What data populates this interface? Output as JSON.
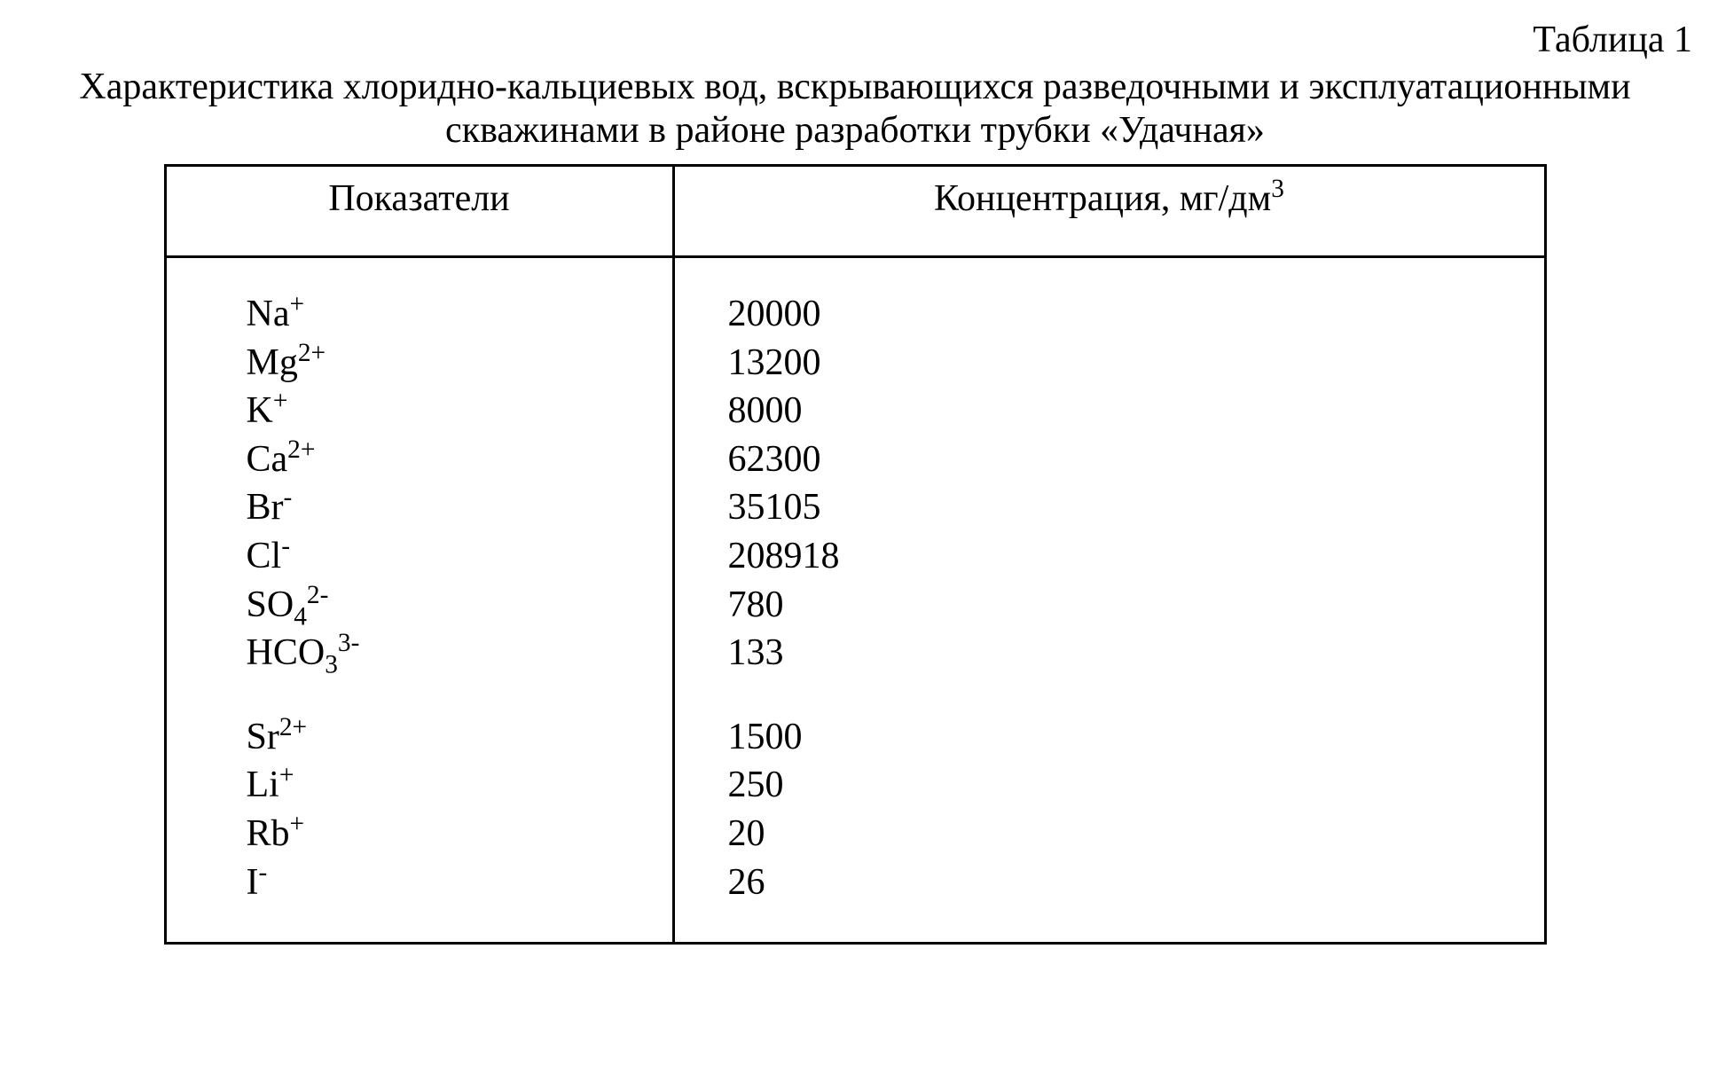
{
  "tableNumber": "Таблица 1",
  "caption": "Характеристика хлоридно-кальциевых вод, вскрывающихся разведочными и эксплуатационными скважинами в районе разработки трубки «Удачная»",
  "columns": {
    "param": "Показатели",
    "conc_prefix": "Концентрация, мг/дм",
    "conc_sup": "3"
  },
  "group1": [
    {
      "base": "Na",
      "sup": "+",
      "sub": "",
      "value": "20000"
    },
    {
      "base": "Mg",
      "sup": "2+",
      "sub": "",
      "value": "13200"
    },
    {
      "base": "K",
      "sup": "+",
      "sub": "",
      "value": "8000"
    },
    {
      "base": "Ca",
      "sup": "2+",
      "sub": "",
      "value": "62300"
    },
    {
      "base": "Br",
      "sup": "-",
      "sub": "",
      "value": "35105"
    },
    {
      "base": "Cl",
      "sup": "-",
      "sub": "",
      "value": "208918"
    },
    {
      "base": "SO",
      "sup": "2-",
      "sub": "4",
      "value": "780"
    },
    {
      "base": "HCO",
      "sup": "3-",
      "sub": "3",
      "value": "133"
    }
  ],
  "group2": [
    {
      "base": "Sr",
      "sup": "2+",
      "sub": "",
      "value": "1500"
    },
    {
      "base": "Li",
      "sup": "+",
      "sub": "",
      "value": "250"
    },
    {
      "base": "Rb",
      "sup": "+",
      "sub": "",
      "value": "20"
    },
    {
      "base": "I",
      "sup": "-",
      "sub": "",
      "value": "26"
    }
  ]
}
